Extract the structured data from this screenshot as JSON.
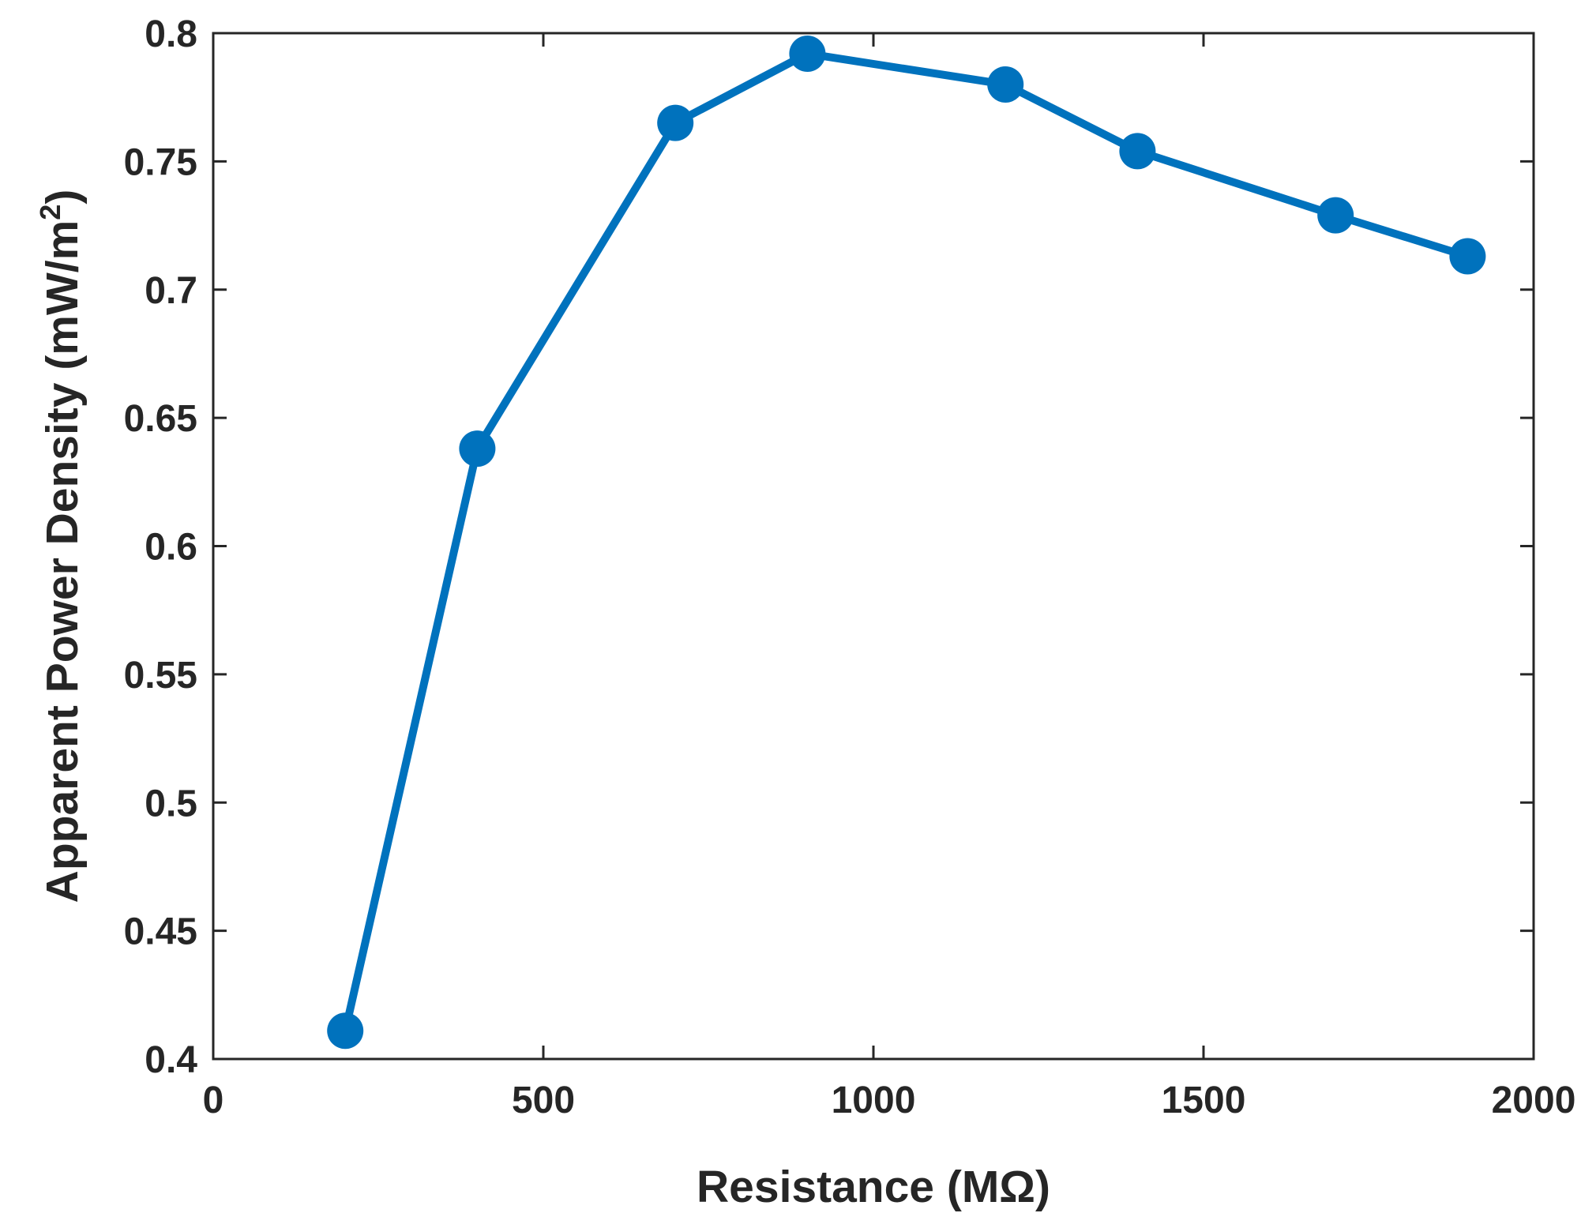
{
  "chart_data": {
    "type": "line",
    "xlabel": "Resistance (MΩ)",
    "ylabel_main": "Apparent Power Density (mW/m",
    "ylabel_sup": "2",
    "ylabel_close": ")",
    "xlim": [
      0,
      2000
    ],
    "ylim": [
      0.4,
      0.8
    ],
    "xticks": [
      0,
      500,
      1000,
      1500,
      2000
    ],
    "xtick_labels": [
      "0",
      "500",
      "1000",
      "1500",
      "2000"
    ],
    "yticks": [
      0.4,
      0.45,
      0.5,
      0.55,
      0.6,
      0.65,
      0.7,
      0.75,
      0.8
    ],
    "ytick_labels": [
      "0.4",
      "0.45",
      "0.5",
      "0.55",
      "0.6",
      "0.65",
      "0.7",
      "0.75",
      "0.8"
    ],
    "grid": false,
    "series": [
      {
        "color": "#0072BD",
        "marker": "circle",
        "x": [
          200,
          400,
          700,
          900,
          1200,
          1400,
          1700,
          1900
        ],
        "y": [
          0.411,
          0.638,
          0.765,
          0.792,
          0.78,
          0.754,
          0.729,
          0.713
        ]
      }
    ]
  }
}
